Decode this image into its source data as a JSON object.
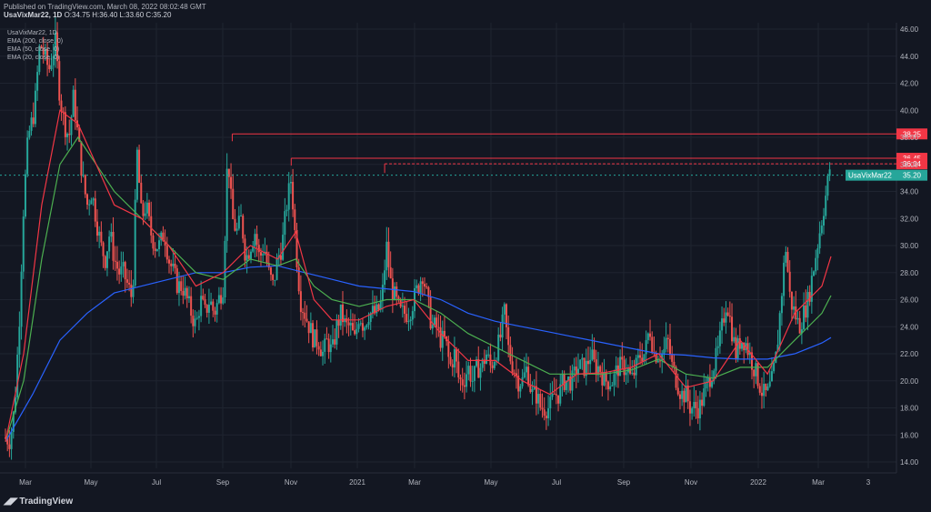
{
  "header": {
    "published": "Published on TradingView.com, March 08, 2022 08:02:48 GMT",
    "symbol_line": "UsaVixMar22, 1D",
    "ohlc": "O:34.75 H:36.40 L:33.60 C:35.20"
  },
  "legend": {
    "symbol": "UsaVixMar22, 1D",
    "indicators": [
      {
        "label": "EMA (200, close, 0)",
        "color": "#2962ff"
      },
      {
        "label": "EMA (50, close, 0)",
        "color": "#4caf50"
      },
      {
        "label": "EMA (20, close, 0)",
        "color": "#f23645"
      }
    ]
  },
  "branding": {
    "name": "TradingView"
  },
  "colors": {
    "background": "#131722",
    "up_candle": "#26a69a",
    "down_candle": "#ef5350",
    "grid": "#1f2430",
    "axis_text": "#b2b5be",
    "level_line": "#f23645",
    "price_badge": "#26a69a"
  },
  "chart_data": {
    "type": "candlestick",
    "symbol": "UsaVixMar22",
    "interval": "1D",
    "ylim": [
      14,
      47
    ],
    "y_ticks": [
      "14.00",
      "16.00",
      "18.00",
      "20.00",
      "22.00",
      "24.00",
      "26.00",
      "28.00",
      "30.00",
      "32.00",
      "34.00",
      "36.00",
      "38.00",
      "40.00",
      "42.00",
      "44.00",
      "46.00"
    ],
    "x_ticks": [
      "Mar",
      "May",
      "Jul",
      "Sep",
      "Nov",
      "2021",
      "Mar",
      "May",
      "Jul",
      "Sep",
      "Nov",
      "2022",
      "Mar",
      "3"
    ],
    "price_trajectory": [
      [
        0,
        15.8
      ],
      [
        5,
        15.6
      ],
      [
        10,
        18
      ],
      [
        15,
        24
      ],
      [
        20,
        33
      ],
      [
        25,
        38
      ],
      [
        32,
        40
      ],
      [
        38,
        45
      ],
      [
        43,
        44
      ],
      [
        48,
        43
      ],
      [
        55,
        45
      ],
      [
        60,
        41
      ],
      [
        65,
        39
      ],
      [
        70,
        38
      ],
      [
        75,
        41
      ],
      [
        80,
        38
      ],
      [
        85,
        35
      ],
      [
        90,
        33
      ],
      [
        95,
        34
      ],
      [
        100,
        32
      ],
      [
        105,
        30
      ],
      [
        110,
        29
      ],
      [
        115,
        31
      ],
      [
        120,
        29
      ],
      [
        125,
        28
      ],
      [
        130,
        28
      ],
      [
        135,
        27
      ],
      [
        140,
        26
      ],
      [
        145,
        37
      ],
      [
        150,
        32
      ],
      [
        155,
        33
      ],
      [
        160,
        31
      ],
      [
        165,
        30
      ],
      [
        170,
        30
      ],
      [
        175,
        31
      ],
      [
        180,
        29
      ],
      [
        185,
        28
      ],
      [
        190,
        27
      ],
      [
        195,
        27
      ],
      [
        200,
        26
      ],
      [
        205,
        25
      ],
      [
        210,
        24
      ],
      [
        215,
        26
      ],
      [
        220,
        25
      ],
      [
        225,
        26
      ],
      [
        230,
        25
      ],
      [
        235,
        26
      ],
      [
        240,
        27
      ],
      [
        245,
        37
      ],
      [
        250,
        32
      ],
      [
        255,
        31
      ],
      [
        260,
        32
      ],
      [
        265,
        29
      ],
      [
        270,
        30
      ],
      [
        275,
        31
      ],
      [
        280,
        29
      ],
      [
        285,
        30
      ],
      [
        290,
        28
      ],
      [
        295,
        27
      ],
      [
        300,
        29
      ],
      [
        305,
        30
      ],
      [
        310,
        33
      ],
      [
        315,
        35
      ],
      [
        320,
        30
      ],
      [
        325,
        26
      ],
      [
        330,
        25
      ],
      [
        335,
        24
      ],
      [
        340,
        23
      ],
      [
        345,
        23
      ],
      [
        350,
        22
      ],
      [
        355,
        23
      ],
      [
        360,
        22
      ],
      [
        365,
        24
      ],
      [
        370,
        25
      ],
      [
        375,
        24
      ],
      [
        380,
        24
      ],
      [
        385,
        23
      ],
      [
        390,
        25
      ],
      [
        395,
        24
      ],
      [
        400,
        25
      ],
      [
        405,
        25
      ],
      [
        410,
        25
      ],
      [
        415,
        26
      ],
      [
        420,
        30
      ],
      [
        425,
        27
      ],
      [
        430,
        26
      ],
      [
        435,
        25
      ],
      [
        440,
        25
      ],
      [
        445,
        25
      ],
      [
        450,
        26
      ],
      [
        455,
        27
      ],
      [
        460,
        28
      ],
      [
        465,
        26
      ],
      [
        470,
        24
      ],
      [
        475,
        24
      ],
      [
        480,
        23
      ],
      [
        485,
        23
      ],
      [
        490,
        21
      ],
      [
        495,
        22
      ],
      [
        500,
        20
      ],
      [
        505,
        20
      ],
      [
        510,
        21
      ],
      [
        515,
        20
      ],
      [
        520,
        21
      ],
      [
        525,
        21
      ],
      [
        530,
        22
      ],
      [
        535,
        21
      ],
      [
        540,
        22
      ],
      [
        545,
        23
      ],
      [
        550,
        25
      ],
      [
        555,
        22
      ],
      [
        560,
        21
      ],
      [
        565,
        20
      ],
      [
        570,
        20
      ],
      [
        575,
        21
      ],
      [
        580,
        19
      ],
      [
        585,
        19
      ],
      [
        590,
        18
      ],
      [
        595,
        18
      ],
      [
        600,
        18
      ],
      [
        605,
        19
      ],
      [
        610,
        19
      ],
      [
        615,
        20
      ],
      [
        620,
        20
      ],
      [
        625,
        20
      ],
      [
        630,
        21
      ],
      [
        635,
        21
      ],
      [
        640,
        21
      ],
      [
        645,
        22
      ],
      [
        650,
        21
      ],
      [
        655,
        21
      ],
      [
        660,
        20
      ],
      [
        665,
        20
      ],
      [
        670,
        20
      ],
      [
        675,
        21
      ],
      [
        680,
        21
      ],
      [
        685,
        21
      ],
      [
        690,
        20
      ],
      [
        695,
        21
      ],
      [
        700,
        22
      ],
      [
        705,
        22
      ],
      [
        710,
        24
      ],
      [
        715,
        22
      ],
      [
        720,
        22
      ],
      [
        725,
        22
      ],
      [
        730,
        23
      ],
      [
        735,
        21
      ],
      [
        740,
        20
      ],
      [
        745,
        19
      ],
      [
        750,
        19
      ],
      [
        755,
        18
      ],
      [
        760,
        18
      ],
      [
        765,
        18
      ],
      [
        770,
        19
      ],
      [
        775,
        20
      ],
      [
        780,
        21
      ],
      [
        785,
        22
      ],
      [
        790,
        24
      ],
      [
        795,
        26
      ],
      [
        800,
        24
      ],
      [
        805,
        22
      ],
      [
        810,
        23
      ],
      [
        815,
        23
      ],
      [
        820,
        22
      ],
      [
        825,
        21
      ],
      [
        830,
        20
      ],
      [
        835,
        19
      ],
      [
        840,
        19
      ],
      [
        845,
        20
      ],
      [
        850,
        22
      ],
      [
        855,
        26
      ],
      [
        860,
        30
      ],
      [
        865,
        26
      ],
      [
        870,
        25
      ],
      [
        875,
        24
      ],
      [
        880,
        25
      ],
      [
        885,
        26
      ],
      [
        890,
        28
      ],
      [
        895,
        30
      ],
      [
        900,
        32
      ],
      [
        905,
        34
      ],
      [
        910,
        36.4
      ]
    ],
    "ema_200_path": [
      [
        0,
        15.5
      ],
      [
        30,
        19
      ],
      [
        60,
        23
      ],
      [
        90,
        25
      ],
      [
        120,
        26.5
      ],
      [
        150,
        27
      ],
      [
        180,
        27.5
      ],
      [
        210,
        28
      ],
      [
        240,
        28
      ],
      [
        270,
        28.4
      ],
      [
        300,
        28.5
      ],
      [
        330,
        28
      ],
      [
        360,
        27.5
      ],
      [
        390,
        27
      ],
      [
        420,
        26.8
      ],
      [
        450,
        26.6
      ],
      [
        480,
        26
      ],
      [
        510,
        25
      ],
      [
        540,
        24.4
      ],
      [
        570,
        24
      ],
      [
        600,
        23.6
      ],
      [
        630,
        23.2
      ],
      [
        660,
        22.8
      ],
      [
        690,
        22.4
      ],
      [
        720,
        22
      ],
      [
        750,
        21.9
      ],
      [
        780,
        21.7
      ],
      [
        810,
        21.6
      ],
      [
        840,
        21.6
      ],
      [
        870,
        22
      ],
      [
        900,
        22.8
      ],
      [
        910,
        23.2
      ]
    ],
    "ema_50_path": [
      [
        0,
        15.5
      ],
      [
        20,
        20
      ],
      [
        40,
        29
      ],
      [
        60,
        36
      ],
      [
        80,
        38
      ],
      [
        100,
        36
      ],
      [
        120,
        34
      ],
      [
        150,
        32
      ],
      [
        180,
        30
      ],
      [
        210,
        28
      ],
      [
        240,
        27.5
      ],
      [
        270,
        29
      ],
      [
        300,
        28.5
      ],
      [
        320,
        29
      ],
      [
        340,
        27
      ],
      [
        360,
        26
      ],
      [
        390,
        25.5
      ],
      [
        420,
        26
      ],
      [
        450,
        26
      ],
      [
        480,
        25
      ],
      [
        510,
        23.5
      ],
      [
        540,
        22.5
      ],
      [
        570,
        21.5
      ],
      [
        600,
        20.5
      ],
      [
        630,
        20.5
      ],
      [
        660,
        20.5
      ],
      [
        690,
        20.8
      ],
      [
        720,
        21.6
      ],
      [
        750,
        20.5
      ],
      [
        780,
        20.2
      ],
      [
        810,
        21
      ],
      [
        840,
        21
      ],
      [
        870,
        23
      ],
      [
        900,
        25
      ],
      [
        910,
        26.3
      ]
    ],
    "ema_20_path": [
      [
        0,
        15.5
      ],
      [
        20,
        22
      ],
      [
        40,
        33
      ],
      [
        60,
        40
      ],
      [
        80,
        39
      ],
      [
        100,
        36
      ],
      [
        120,
        33
      ],
      [
        150,
        32
      ],
      [
        180,
        30
      ],
      [
        210,
        27
      ],
      [
        240,
        28
      ],
      [
        270,
        30
      ],
      [
        300,
        29
      ],
      [
        320,
        31
      ],
      [
        340,
        26
      ],
      [
        360,
        24.5
      ],
      [
        390,
        24.5
      ],
      [
        420,
        25.5
      ],
      [
        450,
        26
      ],
      [
        480,
        23.5
      ],
      [
        510,
        21.5
      ],
      [
        540,
        21.5
      ],
      [
        570,
        20
      ],
      [
        600,
        19
      ],
      [
        630,
        20.5
      ],
      [
        660,
        20.6
      ],
      [
        690,
        21
      ],
      [
        720,
        22
      ],
      [
        750,
        19.5
      ],
      [
        780,
        20
      ],
      [
        810,
        23
      ],
      [
        840,
        20.5
      ],
      [
        870,
        25
      ],
      [
        900,
        27
      ],
      [
        910,
        29.2
      ]
    ],
    "levels": [
      {
        "label": "38.25",
        "value": 38.25,
        "start_t": 250
      },
      {
        "label": "36.45",
        "value": 36.45,
        "start_t": 315
      },
      {
        "label": "36.04",
        "value": 36.04,
        "start_t": 418
      }
    ],
    "last_price": {
      "symbol_label": "UsaVixMar22",
      "value": 35.2,
      "label": "35.20"
    }
  }
}
